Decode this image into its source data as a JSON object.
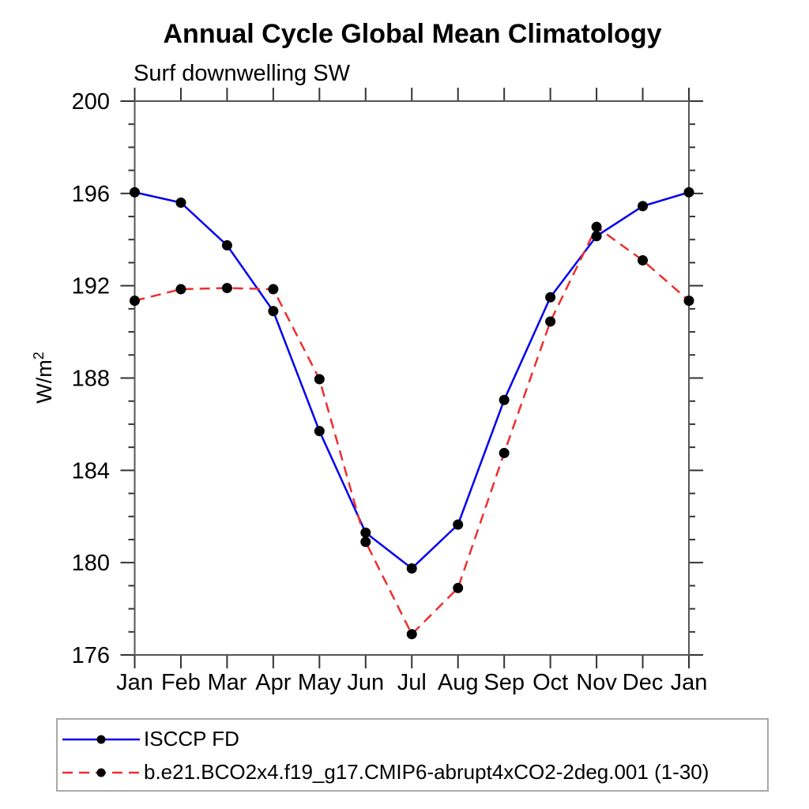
{
  "chart_data": {
    "type": "line",
    "title": "Annual Cycle Global Mean Climatology",
    "subtitle": "Surf downwelling SW",
    "ylabel_base": "W/m",
    "ylabel_sup": "2",
    "categories": [
      "Jan",
      "Feb",
      "Mar",
      "Apr",
      "May",
      "Jun",
      "Jul",
      "Aug",
      "Sep",
      "Oct",
      "Nov",
      "Dec",
      "Jan"
    ],
    "ylim": [
      176,
      200
    ],
    "ytick_major": [
      176,
      180,
      184,
      188,
      192,
      196,
      200
    ],
    "ytick_minor_step": 1,
    "grid": "off",
    "legend_position": "bottom-left-box",
    "series": [
      {
        "name": "ISCCP FD",
        "color": "#0000ee",
        "line_style": "solid",
        "marker": "filled-circle",
        "marker_color": "#000000",
        "values": [
          196.05,
          195.6,
          193.75,
          190.9,
          185.7,
          181.3,
          179.75,
          181.65,
          187.05,
          191.5,
          194.15,
          195.45,
          196.05
        ]
      },
      {
        "name": "b.e21.BCO2x4.f19_g17.CMIP6-abrupt4xCO2-2deg.001 (1-30)",
        "color": "#ee2e2e",
        "line_style": "dashed",
        "marker": "filled-circle",
        "marker_color": "#000000",
        "values": [
          191.35,
          191.85,
          191.9,
          191.85,
          187.95,
          180.9,
          176.9,
          178.9,
          184.75,
          190.45,
          194.55,
          193.1,
          191.35
        ]
      }
    ]
  }
}
